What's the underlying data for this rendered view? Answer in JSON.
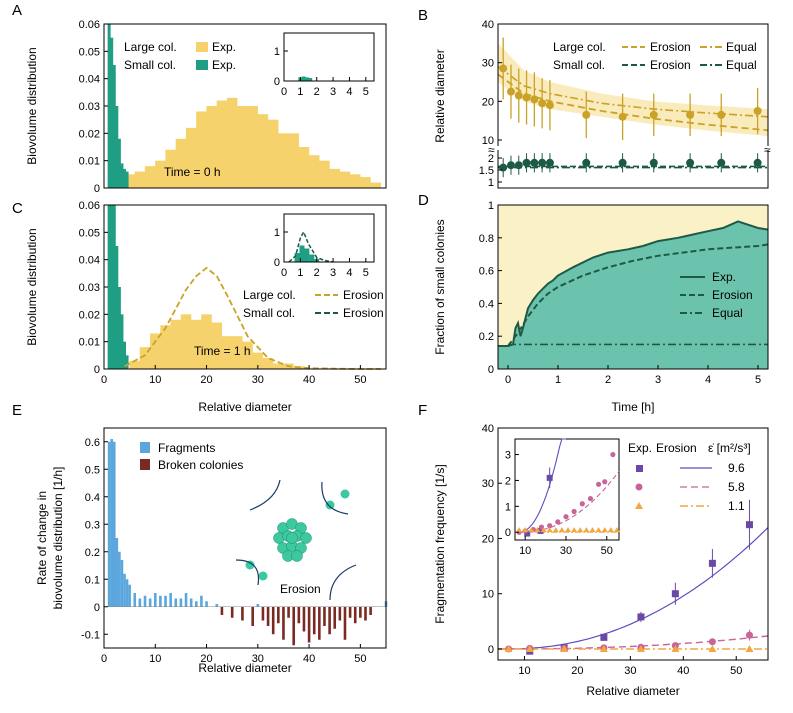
{
  "colors": {
    "large": "#f5d26b",
    "large_line": "#c9a227",
    "small": "#1f9e83",
    "small_dark": "#1d5a45",
    "fragments": "#5aa6dd",
    "broken": "#7a2a22",
    "fill_small": "#6cc3ad",
    "fill_large": "#fbf1c7",
    "purple": "#6a48a6",
    "pink": "#c8649a",
    "orange": "#f4a640",
    "line_blue": "#5a4fc0"
  },
  "chart_data": [
    {
      "panel": "A",
      "type": "bar",
      "ylabel": "Biovolume distribution",
      "xlim": [
        0,
        55
      ],
      "ylim": [
        0,
        0.06
      ],
      "yticks": [
        "0",
        "0.01",
        "0.02",
        "0.03",
        "0.04",
        "0.05",
        "0.06"
      ],
      "legend": {
        "large": "Large col.",
        "small": "Small col.",
        "exp": "Exp."
      },
      "annotation": "Time = 0 h",
      "small_hist": {
        "x": [
          1,
          1.5,
          2,
          2.5,
          3,
          3.5,
          4,
          4.5
        ],
        "values": [
          0.06,
          0.055,
          0.045,
          0.03,
          0.018,
          0.009,
          0.007,
          0.006
        ]
      },
      "large_hist": {
        "x": [
          5,
          7,
          9,
          11,
          13,
          15,
          17,
          19,
          21,
          23,
          25,
          27,
          29,
          31,
          33,
          35,
          37,
          39,
          41,
          43,
          45,
          47,
          49,
          51,
          53
        ],
        "values": [
          0.005,
          0.006,
          0.008,
          0.01,
          0.014,
          0.018,
          0.022,
          0.028,
          0.03,
          0.032,
          0.033,
          0.03,
          0.03,
          0.027,
          0.025,
          0.02,
          0.02,
          0.015,
          0.012,
          0.01,
          0.007,
          0.006,
          0.005,
          0.004,
          0.002
        ]
      },
      "inset": {
        "xticks": [
          "0",
          "1",
          "2",
          "3",
          "4",
          "5"
        ],
        "yticks": [
          "0",
          "1"
        ],
        "x": [
          1,
          1.2,
          1.4,
          1.6
        ],
        "values": [
          0.12,
          0.15,
          0.12,
          0.1
        ]
      }
    },
    {
      "panel": "B",
      "type": "line",
      "ylabel": "Relative diameter",
      "xlim": [
        0,
        5.2
      ],
      "yticks_top": [
        "10",
        "20",
        "30",
        "40"
      ],
      "yticks_bottom": [
        "1",
        "1.5",
        "2"
      ],
      "legend": {
        "large": "Large col.",
        "small": "Small col.",
        "erosion": "Erosion",
        "equal": "Equal"
      },
      "large_points": {
        "x": [
          0.1,
          0.25,
          0.4,
          0.55,
          0.7,
          0.85,
          1.0,
          1.7,
          2.4,
          3.0,
          3.7,
          4.3,
          5.0
        ],
        "y": [
          28.5,
          22.5,
          21.5,
          21,
          20.5,
          19.5,
          19,
          16.5,
          16,
          16.5,
          16.5,
          16.5,
          17.5
        ],
        "err": [
          8,
          7,
          7,
          7,
          7,
          6.5,
          6.5,
          6,
          6,
          5.5,
          5.5,
          5.5,
          6
        ]
      },
      "small_points": {
        "x": [
          0.1,
          0.25,
          0.4,
          0.55,
          0.7,
          0.85,
          1.0,
          1.7,
          2.4,
          3.0,
          3.7,
          4.3,
          5.0
        ],
        "y": [
          1.6,
          1.7,
          1.7,
          1.8,
          1.8,
          1.8,
          1.8,
          1.8,
          1.8,
          1.8,
          1.8,
          1.8,
          1.8
        ]
      },
      "erosion_large": {
        "x": [
          0,
          0.5,
          1,
          2,
          3,
          4,
          5.2
        ],
        "y": [
          27,
          22,
          20,
          17.5,
          15.5,
          14,
          12.5
        ]
      },
      "equal_large": {
        "x": [
          0,
          0.5,
          1,
          2,
          3,
          4,
          5.2
        ],
        "y": [
          29,
          24,
          22,
          19.5,
          18,
          17,
          16
        ]
      }
    },
    {
      "panel": "C",
      "type": "bar",
      "ylabel": "Biovolume distribution",
      "xlabel": "Relative diameter",
      "xlim": [
        0,
        55
      ],
      "ylim": [
        0,
        0.06
      ],
      "xticks": [
        "0",
        "10",
        "20",
        "30",
        "40",
        "50"
      ],
      "yticks": [
        "0",
        "0.01",
        "0.02",
        "0.03",
        "0.04",
        "0.05",
        "0.06"
      ],
      "legend": {
        "large": "Large col.",
        "small": "Small col.",
        "erosion": "Erosion"
      },
      "annotation": "Time = 1 h",
      "small_hist": {
        "x": [
          1,
          1.5,
          2,
          2.5,
          3,
          3.5,
          4,
          4.5
        ],
        "values": [
          0.06,
          0.06,
          0.06,
          0.045,
          0.03,
          0.02,
          0.01,
          0.005
        ]
      },
      "large_hist": {
        "x": [
          6,
          8,
          10,
          12,
          14,
          16,
          18,
          20,
          22,
          24,
          26,
          28,
          30,
          32,
          34,
          36,
          38
        ],
        "values": [
          0.003,
          0.008,
          0.013,
          0.016,
          0.018,
          0.02,
          0.018,
          0.02,
          0.017,
          0.012,
          0.012,
          0.01,
          0.006,
          0.004,
          0.002,
          0.002,
          0.001
        ]
      },
      "erosion_curve": {
        "x": [
          4,
          8,
          12,
          16,
          18,
          20,
          22,
          24,
          28,
          32,
          36,
          40,
          45,
          50,
          54
        ],
        "y": [
          0.001,
          0.005,
          0.015,
          0.029,
          0.034,
          0.037,
          0.034,
          0.027,
          0.012,
          0.004,
          0.001,
          0.0003,
          0.0001,
          0,
          0
        ]
      },
      "inset": {
        "xticks": [
          "0",
          "1",
          "2",
          "3",
          "4",
          "5"
        ],
        "yticks": [
          "0",
          "1"
        ],
        "x": [
          0.8,
          1.1,
          1.4,
          1.7,
          2.0
        ],
        "values": [
          0.3,
          0.55,
          0.45,
          0.25,
          0.1
        ],
        "curve_x": [
          0.3,
          0.7,
          1.0,
          1.2,
          1.5,
          2.0,
          2.5,
          3
        ],
        "curve_y": [
          0,
          0.2,
          0.8,
          1.0,
          0.6,
          0.15,
          0.05,
          0
        ]
      }
    },
    {
      "panel": "D",
      "type": "area",
      "ylabel": "Fraction of small colonies",
      "xlabel": "Time [h]",
      "xlim": [
        -0.2,
        5.2
      ],
      "ylim": [
        0,
        1
      ],
      "xticks": [
        "0",
        "1",
        "2",
        "3",
        "4",
        "5"
      ],
      "yticks": [
        "0",
        "0.2",
        "0.4",
        "0.6",
        "0.8",
        "1"
      ],
      "legend": {
        "exp": "Exp.",
        "erosion": "Erosion",
        "equal": "Equal"
      },
      "exp": {
        "x": [
          -0.2,
          0,
          0.1,
          0.15,
          0.2,
          0.25,
          0.3,
          0.4,
          0.5,
          0.6,
          0.7,
          0.8,
          0.9,
          1.0,
          1.3,
          1.7,
          2.0,
          2.4,
          2.7,
          3.0,
          3.4,
          3.7,
          4.0,
          4.3,
          4.6,
          4.8,
          5.0,
          5.2
        ],
        "y": [
          0.14,
          0.14,
          0.15,
          0.25,
          0.28,
          0.2,
          0.25,
          0.37,
          0.42,
          0.46,
          0.49,
          0.52,
          0.54,
          0.57,
          0.62,
          0.68,
          0.71,
          0.73,
          0.75,
          0.78,
          0.8,
          0.82,
          0.84,
          0.86,
          0.9,
          0.88,
          0.86,
          0.85
        ]
      },
      "erosion": {
        "x": [
          0,
          0.2,
          0.4,
          0.6,
          0.8,
          1,
          1.5,
          2,
          2.5,
          3,
          3.5,
          4,
          4.5,
          5,
          5.2
        ],
        "y": [
          0.14,
          0.22,
          0.32,
          0.4,
          0.46,
          0.5,
          0.57,
          0.62,
          0.66,
          0.69,
          0.71,
          0.73,
          0.74,
          0.75,
          0.76
        ]
      },
      "equal": {
        "x": [
          0,
          5.2
        ],
        "y": [
          0.15,
          0.15
        ]
      }
    },
    {
      "panel": "E",
      "type": "bar",
      "ylabel": "Rate of change in biovolume distribution [1/h]",
      "xlabel": "Relative diameter",
      "xlim": [
        0,
        55
      ],
      "ylim": [
        -0.15,
        0.65
      ],
      "xticks": [
        "0",
        "10",
        "20",
        "30",
        "40",
        "50"
      ],
      "yticks": [
        "-0.1",
        "0",
        "0.1",
        "0.2",
        "0.3",
        "0.4",
        "0.5",
        "0.6"
      ],
      "legend": {
        "fragments": "Fragments",
        "broken": "Broken colonies"
      },
      "annotation": "Erosion",
      "fragments": {
        "x": [
          1,
          1.5,
          2,
          2.5,
          3,
          3.5,
          4,
          4.5,
          5,
          6,
          7,
          8,
          9,
          10,
          11,
          12,
          13,
          14,
          15,
          16,
          17,
          18,
          19,
          20,
          22,
          30,
          55
        ],
        "values": [
          0.6,
          0.61,
          0.6,
          0.25,
          0.2,
          0.17,
          0.12,
          0.1,
          0.08,
          0.05,
          0.03,
          0.04,
          0.03,
          0.05,
          0.04,
          0.04,
          0.05,
          0.03,
          0.03,
          0.05,
          0.03,
          0.02,
          0.04,
          0.02,
          0.01,
          0.01,
          0.02
        ]
      },
      "broken": {
        "x": [
          23,
          25,
          27,
          29,
          31,
          32,
          33,
          34,
          35,
          36,
          37,
          38,
          39,
          40,
          41,
          42,
          43,
          44,
          45,
          46,
          47,
          48,
          49,
          50,
          51,
          52
        ],
        "values": [
          -0.03,
          -0.04,
          -0.05,
          -0.07,
          -0.05,
          -0.07,
          -0.1,
          -0.06,
          -0.12,
          -0.04,
          -0.14,
          -0.06,
          -0.09,
          -0.13,
          -0.1,
          -0.12,
          -0.07,
          -0.1,
          -0.08,
          -0.05,
          -0.12,
          -0.04,
          -0.06,
          -0.04,
          -0.05,
          -0.03
        ]
      }
    },
    {
      "panel": "F",
      "type": "scatter",
      "ylabel": "Fragmentation frequency [1/s]",
      "xlabel": "Relative diameter",
      "xlim": [
        5,
        56
      ],
      "ylim": [
        -2,
        40
      ],
      "xticks": [
        "10",
        "20",
        "30",
        "40",
        "50"
      ],
      "yticks": [
        "0",
        "10",
        "20",
        "30",
        "40"
      ],
      "legend": {
        "exp": "Exp.",
        "erosion": "Erosion",
        "eps": "ε̇ [m²/s³]",
        "v1": "9.6",
        "v2": "5.8",
        "v3": "1.1"
      },
      "purple": {
        "x": [
          11,
          17.5,
          25,
          32,
          38.5,
          45.5,
          52.5
        ],
        "y": [
          -0.4,
          0.2,
          2.1,
          5.8,
          10,
          15.5,
          22.5
        ],
        "err": [
          0.3,
          0.3,
          0.4,
          0.9,
          2,
          2.6,
          4.5
        ]
      },
      "pink": {
        "x": [
          7,
          11,
          17.5,
          25,
          32,
          38.5,
          45.5,
          52.5
        ],
        "y": [
          0,
          0.1,
          0.1,
          0.2,
          0.3,
          0.6,
          1.3,
          2.5
        ],
        "err": [
          0,
          0,
          0,
          0,
          0.1,
          0.2,
          0.4,
          1
        ]
      },
      "orange": {
        "x": [
          7,
          11,
          17.5,
          25,
          32,
          38.5,
          45.5,
          52.5
        ],
        "y": [
          0,
          0,
          0,
          0,
          0,
          0,
          0,
          0
        ]
      },
      "inset": {
        "xticks": [
          "10",
          "30",
          "50"
        ],
        "yticks": [
          "0",
          "1",
          "2",
          "3"
        ]
      }
    }
  ]
}
